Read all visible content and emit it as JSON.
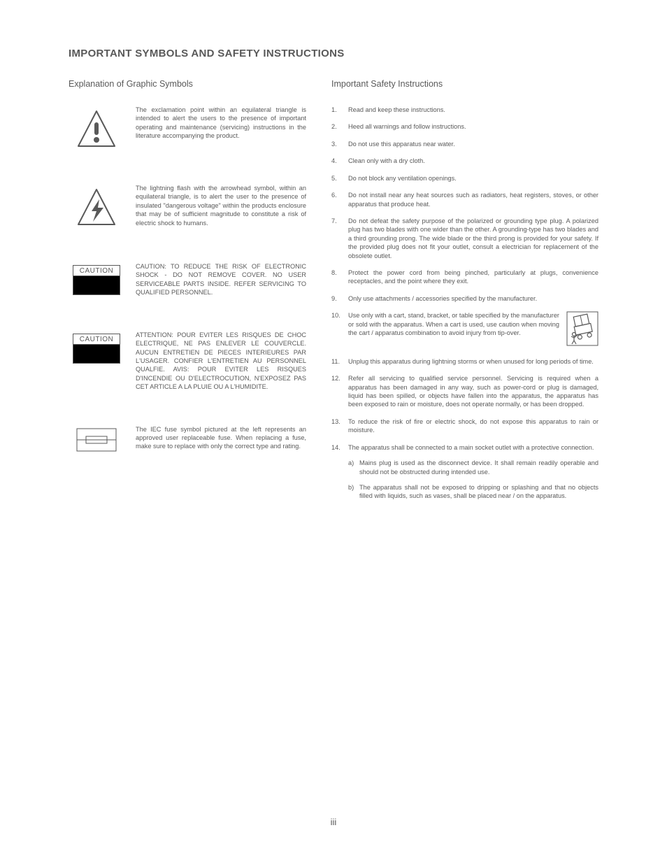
{
  "colors": {
    "text": "#595959",
    "icon_stroke": "#595959",
    "black": "#000000",
    "bg": "#ffffff"
  },
  "typography": {
    "body_fontsize_pt": 7,
    "title_fontsize_pt": 11,
    "subhead_fontsize_pt": 9
  },
  "page": {
    "title": "IMPORTANT SYMBOLS AND SAFETY INSTRUCTIONS",
    "number": "iii"
  },
  "left": {
    "heading": "Explanation of Graphic Symbols",
    "symbols": [
      {
        "name": "exclamation-triangle",
        "text": "The exclamation point within an equilateral triangle is intended to alert the users to the presence of important operating and maintenance (servicing) instructions in the literature accompanying the product."
      },
      {
        "name": "lightning-triangle",
        "text": "The lightning flash with the arrowhead symbol, within an equilateral triangle, is to alert the user to the presence of insulated \"dangerous voltage\" within the products enclosure that may be of sufficient magnitude to constitute a risk of electric shock to humans."
      },
      {
        "name": "caution-box-1",
        "caption": "CAUTION",
        "text": "CAUTION: TO REDUCE THE RISK OF ELECTRONIC SHOCK - DO NOT REMOVE COVER. NO USER SERVICEABLE PARTS INSIDE. REFER SERVICING TO QUALIFIED PERSONNEL."
      },
      {
        "name": "caution-box-2",
        "caption": "CAUTION",
        "text": "ATTENTION: POUR EVITER LES RISQUES DE CHOC ELECTRIQUE, NE PAS ENLEVER LE COUVERCLE. AUCUN ENTRETIEN DE PIECES INTERIEURES PAR L'USAGER. CONFIER L'ENTRETIEN AU PERSONNEL QUALFIE. AVIS: POUR EVITER LES RISQUES D'INCENDIE OU D'ELECTROCUTION, N'EXPOSEZ PAS CET ARTICLE A LA PLUIE OU A L'HUMIDITE."
      },
      {
        "name": "fuse-symbol",
        "text": "The IEC fuse symbol pictured at the left represents an approved user replaceable fuse. When replacing a fuse, make sure to replace with only the correct type and rating."
      }
    ]
  },
  "right": {
    "heading": "Important Safety Instructions",
    "items": [
      "Read and keep these instructions.",
      "Heed all warnings and follow instructions.",
      "Do not use this apparatus near water.",
      "Clean only with a dry cloth.",
      "Do not block any ventilation openings.",
      "Do not install near any heat sources such as radiators, heat registers, stoves, or other apparatus that produce heat.",
      "Do not defeat the safety purpose of the polarized or grounding type plug. A polarized plug has two blades with one wider than the other. A grounding-type has two blades and a third grounding prong. The wide blade or the third prong is provided for your safety. If the provided plug does not fit your outlet, consult a electrician for replacement of the obsolete outlet.",
      "Protect the power cord from being pinched, particularly at plugs, convenience receptacles, and the point where they exit.",
      "Only use attachments / accessories specified by the manufacturer.",
      "Use only with a cart, stand, bracket, or table specified by the manufacturer or sold with the apparatus. When a cart is used, use caution when moving the cart / apparatus combination to avoid injury from tip-over.",
      "Unplug this apparatus during lightning storms or when unused for long periods of time.",
      "Refer all servicing to qualified service personnel. Servicing is required when a apparatus has been damaged in any way, such as power-cord or plug is damaged, liquid has been spilled, or objects have fallen into the apparatus, the apparatus has been exposed to rain or moisture, does not operate normally, or has been dropped.",
      "To reduce the risk of fire or electric shock, do not expose this apparatus to rain or moisture.",
      "The apparatus shall be connected to a main socket outlet with a protective connection."
    ],
    "sub14": [
      {
        "marker": "a)",
        "text": "Mains plug is used as the disconnect device. It shall remain readily operable and should not be obstructed during intended use."
      },
      {
        "marker": "b)",
        "text": "The apparatus shall not be exposed to dripping or splashing and that no objects filled with liquids, such as vases, shall be placed near / on the apparatus."
      }
    ],
    "cart_index": 9
  }
}
